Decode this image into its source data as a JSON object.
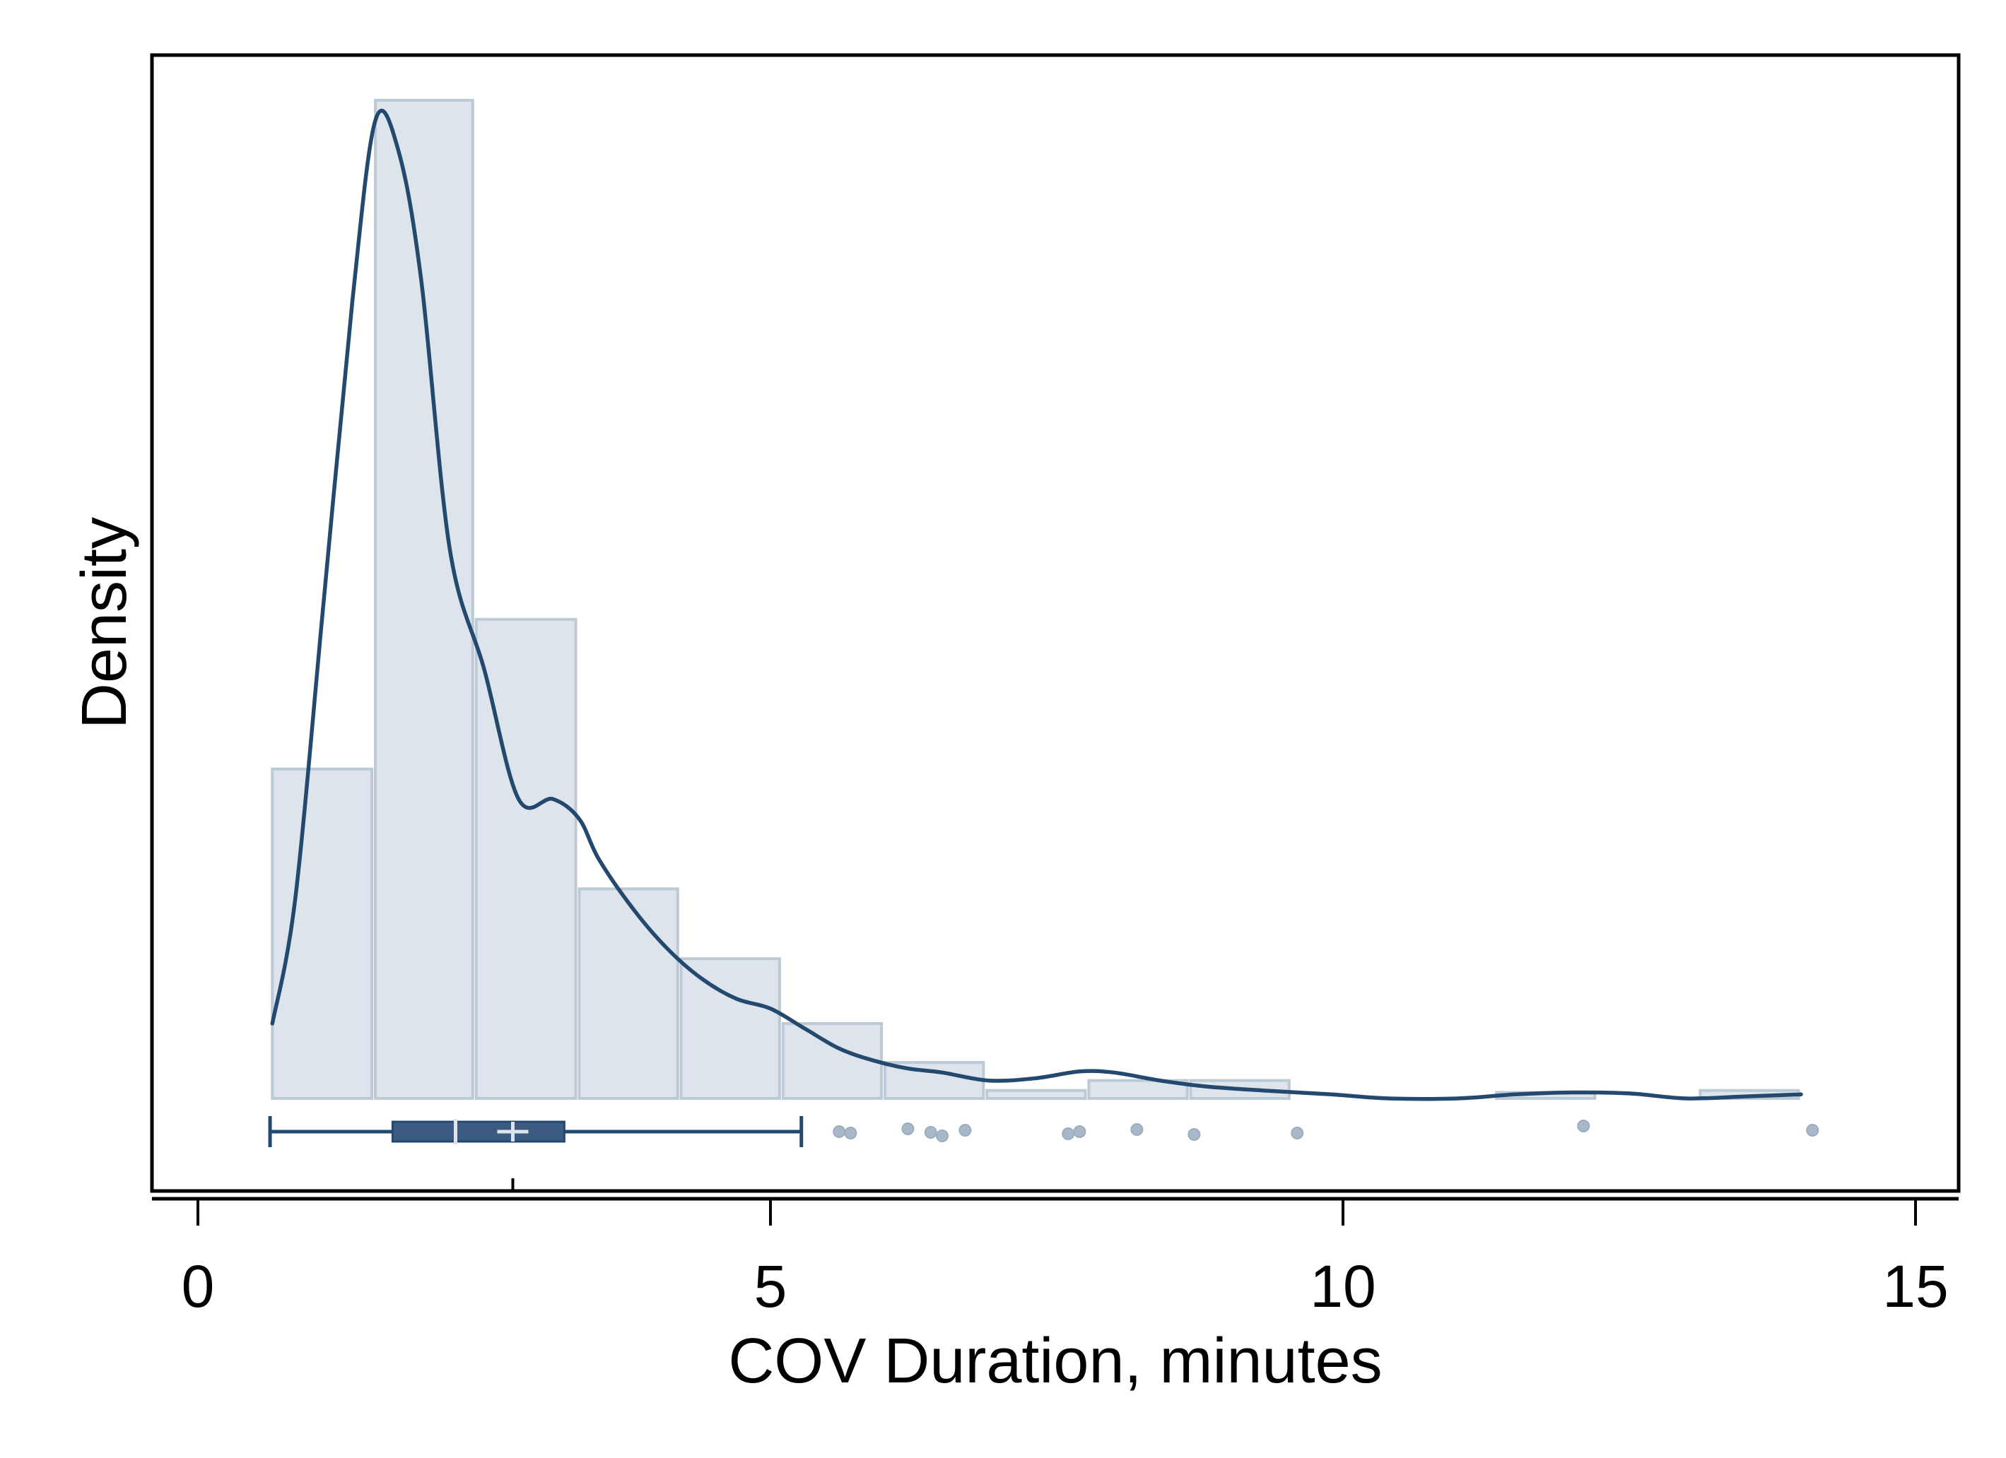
{
  "chart_data": {
    "type": "histogram",
    "xlabel": "COV Duration, minutes",
    "ylabel": "Density",
    "xlim": [
      -0.4,
      15.4
    ],
    "x_ticks": [
      0,
      5,
      10,
      15
    ],
    "colors": {
      "bar_fill": "#dde4eb",
      "bar_stroke": "#bccad6",
      "line": "#24496f",
      "box": "#3b5b80",
      "median": "#dde4eb",
      "outlier": "#a8b8c8"
    },
    "histogram_bins": [
      {
        "x0": 0.65,
        "x1": 1.52,
        "density": 0.33
      },
      {
        "x0": 1.55,
        "x1": 2.4,
        "density": 1.0
      },
      {
        "x0": 2.43,
        "x1": 3.3,
        "density": 0.48
      },
      {
        "x0": 3.33,
        "x1": 4.19,
        "density": 0.21
      },
      {
        "x0": 4.22,
        "x1": 5.08,
        "density": 0.14
      },
      {
        "x0": 5.11,
        "x1": 5.97,
        "density": 0.075
      },
      {
        "x0": 6.0,
        "x1": 6.86,
        "density": 0.036
      },
      {
        "x0": 6.89,
        "x1": 7.75,
        "density": 0.008
      },
      {
        "x0": 7.78,
        "x1": 8.64,
        "density": 0.018
      },
      {
        "x0": 8.67,
        "x1": 9.53,
        "density": 0.018
      },
      {
        "x0": 11.34,
        "x1": 12.2,
        "density": 0.006
      },
      {
        "x0": 13.12,
        "x1": 13.98,
        "density": 0.008
      }
    ],
    "density_curve": [
      [
        0.65,
        0.075
      ],
      [
        0.85,
        0.2
      ],
      [
        1.1,
        0.5
      ],
      [
        1.35,
        0.8
      ],
      [
        1.55,
        0.98
      ],
      [
        1.75,
        0.95
      ],
      [
        1.95,
        0.82
      ],
      [
        2.2,
        0.55
      ],
      [
        2.5,
        0.43
      ],
      [
        2.8,
        0.3
      ],
      [
        3.1,
        0.3
      ],
      [
        3.33,
        0.28
      ],
      [
        3.5,
        0.24
      ],
      [
        3.8,
        0.19
      ],
      [
        4.1,
        0.15
      ],
      [
        4.4,
        0.12
      ],
      [
        4.7,
        0.1
      ],
      [
        5.0,
        0.09
      ],
      [
        5.3,
        0.07
      ],
      [
        5.6,
        0.05
      ],
      [
        5.9,
        0.038
      ],
      [
        6.2,
        0.03
      ],
      [
        6.5,
        0.026
      ],
      [
        6.9,
        0.018
      ],
      [
        7.3,
        0.02
      ],
      [
        7.7,
        0.027
      ],
      [
        8.0,
        0.026
      ],
      [
        8.4,
        0.018
      ],
      [
        8.8,
        0.012
      ],
      [
        9.3,
        0.008
      ],
      [
        9.9,
        0.004
      ],
      [
        10.4,
        0.0
      ],
      [
        11.0,
        0.0
      ],
      [
        11.5,
        0.004
      ],
      [
        12.0,
        0.006
      ],
      [
        12.5,
        0.005
      ],
      [
        13.0,
        0.0
      ],
      [
        13.5,
        0.002
      ],
      [
        14.0,
        0.004
      ]
    ],
    "boxplot": {
      "whisker_low": 0.63,
      "q1": 1.7,
      "median": 2.25,
      "mean": 2.75,
      "q3": 3.2,
      "whisker_high": 5.27,
      "outliers": [
        5.6,
        5.7,
        6.2,
        6.4,
        6.5,
        6.7,
        7.6,
        7.7,
        8.2,
        8.7,
        9.6,
        12.1,
        14.1
      ]
    }
  }
}
